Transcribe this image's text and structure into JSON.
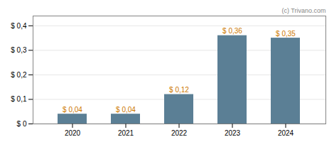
{
  "chart_data": {
    "type": "bar",
    "annotation": "(c) Trivano.com",
    "categories": [
      "2020",
      "2021",
      "2022",
      "2023",
      "2024"
    ],
    "values": [
      0.04,
      0.04,
      0.12,
      0.36,
      0.35
    ],
    "value_labels": [
      "$ 0,04",
      "$ 0,04",
      "$ 0,12",
      "$ 0,36",
      "$ 0,35"
    ],
    "color": "#5b7f95",
    "ylim": [
      0,
      0.44
    ],
    "yticks": [
      {
        "value": 0.0,
        "label": "$ 0"
      },
      {
        "value": 0.1,
        "label": "$ 0,1"
      },
      {
        "value": 0.2,
        "label": "$ 0,2"
      },
      {
        "value": 0.3,
        "label": "$ 0,3"
      },
      {
        "value": 0.4,
        "label": "$ 0,4"
      }
    ],
    "grid": true,
    "data_labels": true
  }
}
